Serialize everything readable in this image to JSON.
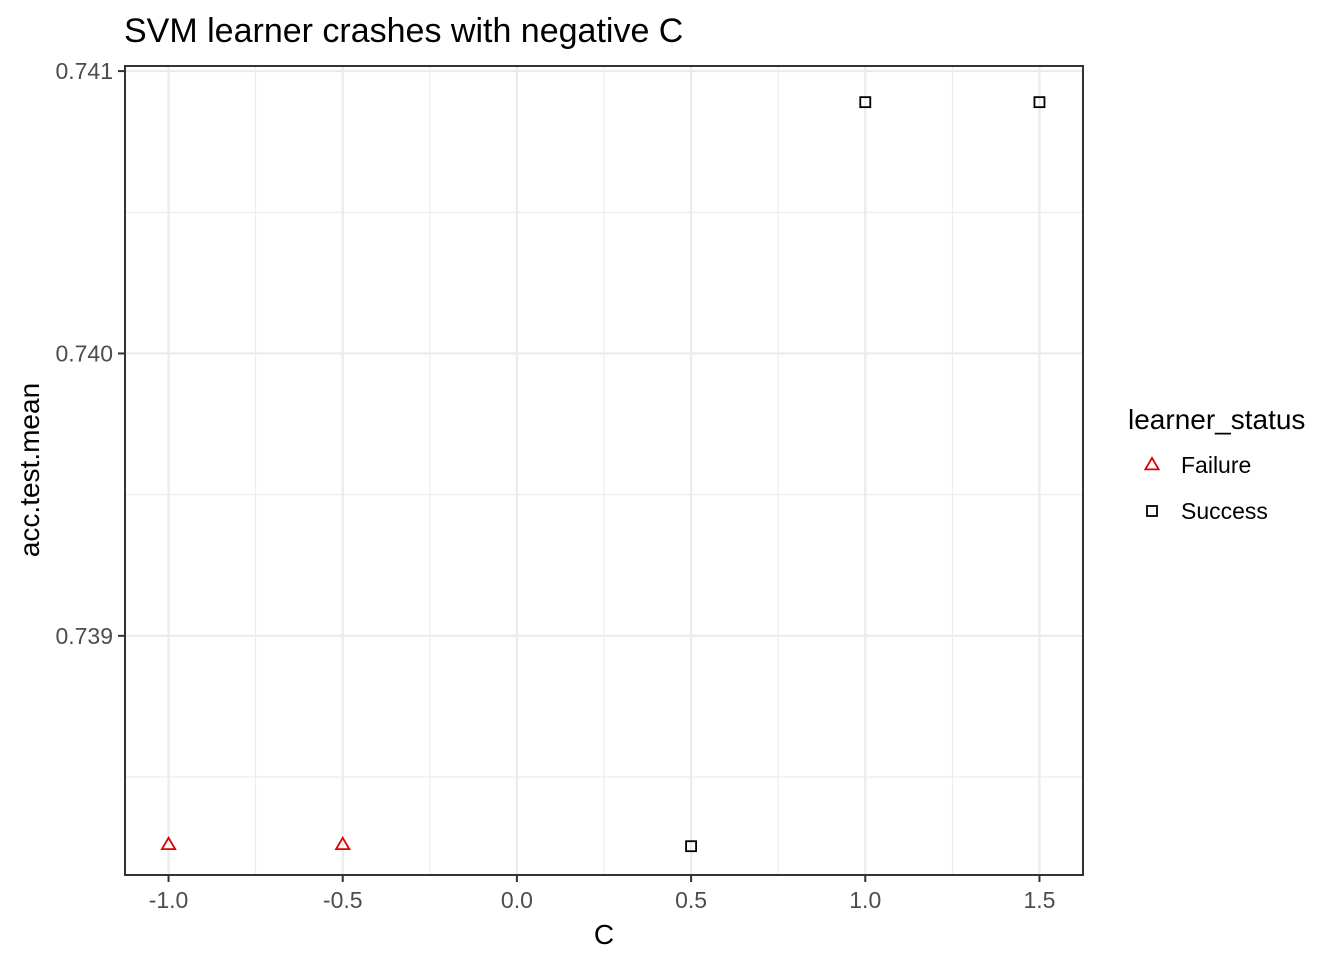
{
  "chart_data": {
    "type": "scatter",
    "title": "SVM learner crashes with negative C",
    "xlabel": "C",
    "ylabel": "acc.test.mean",
    "xlim": [
      -1.125,
      1.625
    ],
    "ylim": [
      0.738153,
      0.741018
    ],
    "x_ticks": [
      -1.0,
      -0.5,
      0.0,
      0.5,
      1.0,
      1.5
    ],
    "x_tick_labels": [
      "-1.0",
      "-0.5",
      "0.0",
      "0.5",
      "1.0",
      "1.5"
    ],
    "x_minor_ticks": [
      -0.75,
      -0.25,
      0.25,
      0.75,
      1.25
    ],
    "y_ticks": [
      0.739,
      0.74,
      0.741
    ],
    "y_tick_labels": [
      "0.739",
      "0.740",
      "0.741"
    ],
    "y_minor_ticks": [
      0.7385,
      0.7395,
      0.7405
    ],
    "grid": true,
    "legend": {
      "title": "learner_status",
      "position": "right"
    },
    "series": [
      {
        "name": "Failure",
        "marker": "triangle",
        "color": "#e00000",
        "points": [
          {
            "x": -1.0,
            "y": 0.73826
          },
          {
            "x": -0.5,
            "y": 0.73826
          }
        ]
      },
      {
        "name": "Success",
        "marker": "square",
        "color": "#000000",
        "points": [
          {
            "x": 0.5,
            "y": 0.738255
          },
          {
            "x": 1.0,
            "y": 0.74089
          },
          {
            "x": 1.5,
            "y": 0.74089
          }
        ]
      }
    ]
  }
}
